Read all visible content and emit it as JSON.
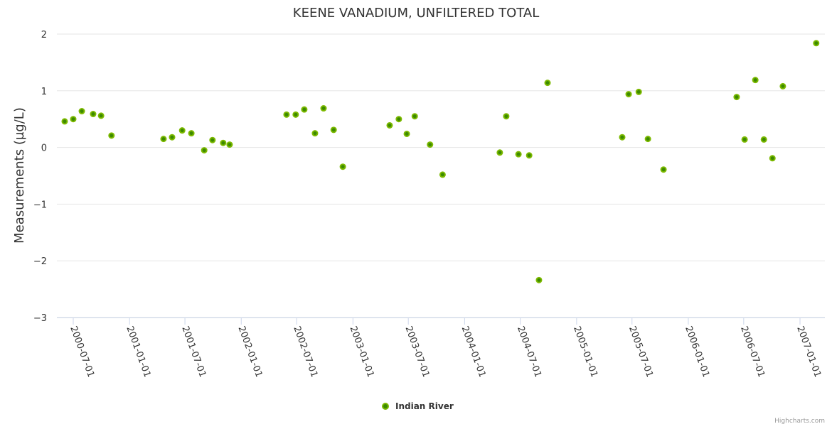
{
  "chart_data": {
    "type": "scatter",
    "title": "KEENE VANADIUM, UNFILTERED TOTAL",
    "xlabel": "",
    "ylabel": "Measurements (µg/L)",
    "ylim": [
      -3,
      2
    ],
    "yticks": [
      "2",
      "1",
      "0",
      "−1",
      "−2",
      "−3"
    ],
    "ytick_values": [
      2,
      1,
      0,
      -1,
      -2,
      -3
    ],
    "xticks": [
      "2000-07-01",
      "2001-01-01",
      "2001-07-01",
      "2002-01-01",
      "2002-07-01",
      "2003-01-01",
      "2003-07-01",
      "2004-01-01",
      "2004-07-01",
      "2005-01-01",
      "2005-07-01",
      "2006-01-01",
      "2006-07-01",
      "2007-01-01"
    ],
    "grid": true,
    "legend_position": "bottom-center",
    "series": [
      {
        "name": "Indian River",
        "color": "#7cb900",
        "inner_color": "#3c8a00",
        "points": [
          [
            "2000-06-03",
            0.46
          ],
          [
            "2000-07-01",
            0.5
          ],
          [
            "2000-07-29",
            0.64
          ],
          [
            "2000-09-04",
            0.59
          ],
          [
            "2000-09-30",
            0.56
          ],
          [
            "2000-11-03",
            0.21
          ],
          [
            "2001-04-22",
            0.15
          ],
          [
            "2001-05-20",
            0.18
          ],
          [
            "2001-06-22",
            0.3
          ],
          [
            "2001-07-22",
            0.25
          ],
          [
            "2001-09-02",
            -0.05
          ],
          [
            "2001-09-29",
            0.13
          ],
          [
            "2001-11-03",
            0.08
          ],
          [
            "2001-11-24",
            0.05
          ],
          [
            "2002-05-29",
            0.58
          ],
          [
            "2002-06-28",
            0.58
          ],
          [
            "2002-07-26",
            0.67
          ],
          [
            "2002-08-30",
            0.25
          ],
          [
            "2002-09-27",
            0.69
          ],
          [
            "2002-10-30",
            0.31
          ],
          [
            "2002-11-29",
            -0.34
          ],
          [
            "2003-05-01",
            0.39
          ],
          [
            "2003-05-31",
            0.5
          ],
          [
            "2003-06-26",
            0.24
          ],
          [
            "2003-07-22",
            0.55
          ],
          [
            "2003-09-10",
            0.05
          ],
          [
            "2003-10-21",
            -0.48
          ],
          [
            "2004-04-25",
            -0.09
          ],
          [
            "2004-05-16",
            0.55
          ],
          [
            "2004-06-25",
            -0.12
          ],
          [
            "2004-07-30",
            -0.14
          ],
          [
            "2004-08-31",
            -2.34
          ],
          [
            "2004-09-28",
            1.14
          ],
          [
            "2005-05-30",
            0.18
          ],
          [
            "2005-06-20",
            0.94
          ],
          [
            "2005-07-23",
            0.98
          ],
          [
            "2005-08-22",
            0.15
          ],
          [
            "2005-10-12",
            -0.39
          ],
          [
            "2006-06-08",
            0.89
          ],
          [
            "2006-07-04",
            0.14
          ],
          [
            "2006-08-08",
            1.19
          ],
          [
            "2006-09-05",
            0.14
          ],
          [
            "2006-10-03",
            -0.19
          ],
          [
            "2006-11-06",
            1.08
          ],
          [
            "2007-02-23",
            1.84
          ]
        ]
      }
    ],
    "credits": "Highcharts.com"
  }
}
